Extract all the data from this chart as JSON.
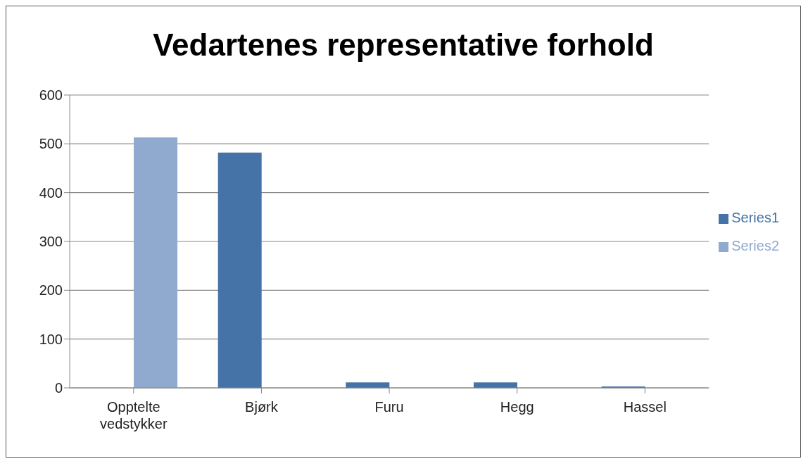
{
  "chart_data": {
    "type": "bar",
    "title": "Vedartenes representative forhold",
    "categories": [
      "Opptelte vedstykker",
      "Bjørk",
      "Furu",
      "Hegg",
      "Hassel"
    ],
    "series": [
      {
        "name": "Series1",
        "color": "#4572a7",
        "values": [
          null,
          482,
          11,
          11,
          3
        ]
      },
      {
        "name": "Series2",
        "color": "#8fa9cf",
        "values": [
          513,
          null,
          null,
          null,
          null
        ]
      }
    ],
    "ylim": [
      0,
      600
    ],
    "yticks": [
      0,
      100,
      200,
      300,
      400,
      500,
      600
    ],
    "grid": "y",
    "legend": "right"
  }
}
